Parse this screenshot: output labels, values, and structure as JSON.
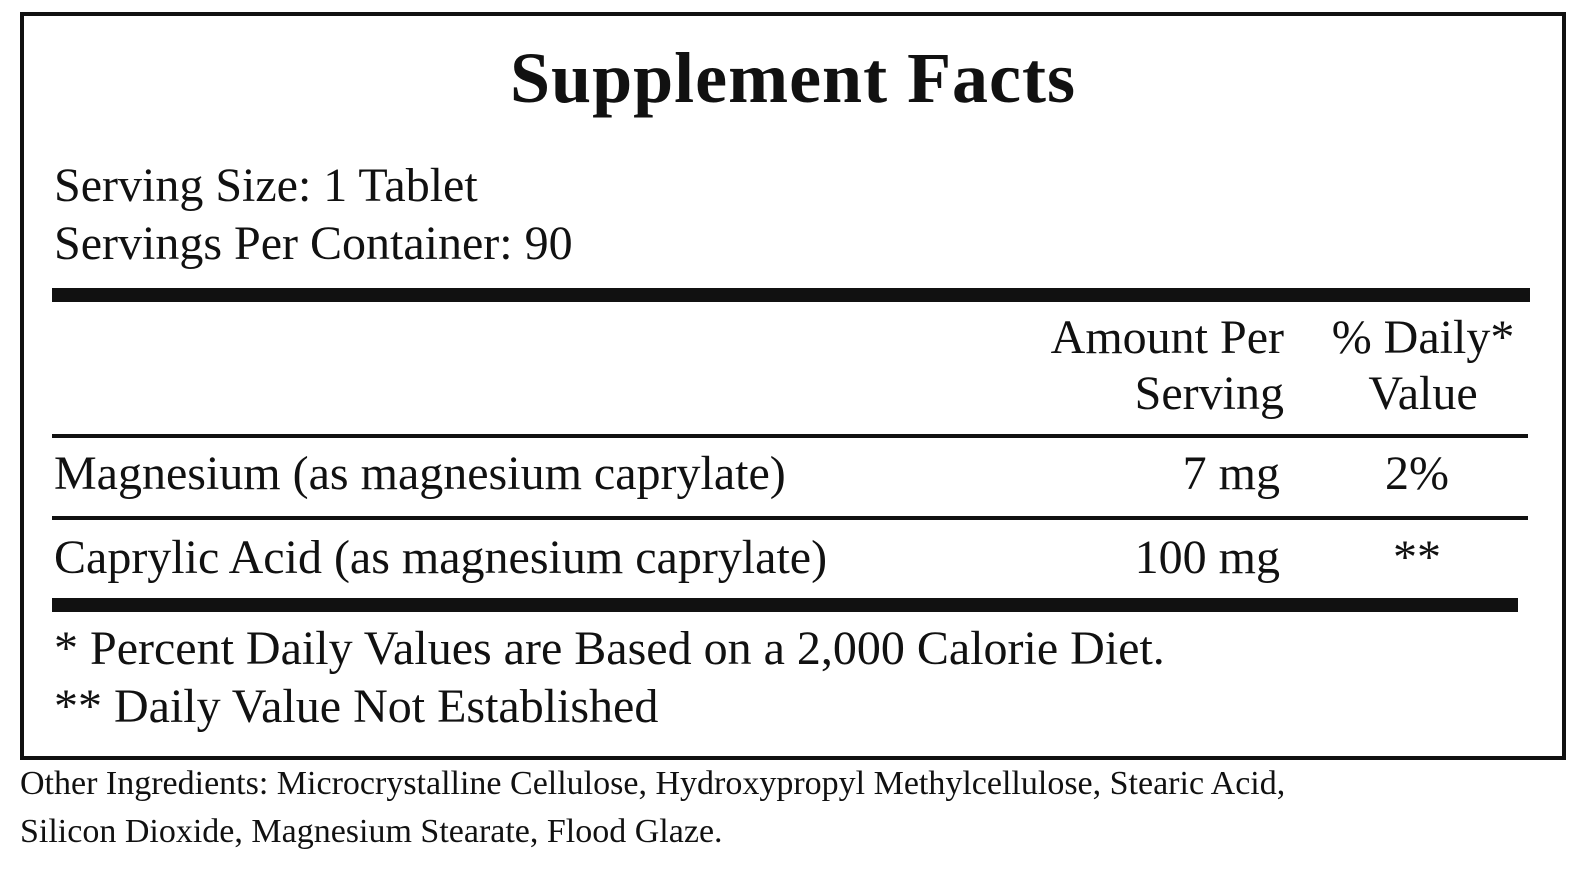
{
  "facts": {
    "title": "Supplement Facts",
    "serving_size": "Serving Size: 1 Tablet",
    "servings_per_container": "Servings Per Container: 90",
    "columns": {
      "amount_line1": "Amount Per",
      "amount_line2": "Serving",
      "dv_line1": "% Daily*",
      "dv_line2": "Value"
    },
    "nutrients": [
      {
        "name": "Magnesium (as magnesium caprylate)",
        "amount": "7 mg",
        "daily_value": "2%"
      },
      {
        "name": "Caprylic Acid (as magnesium caprylate)",
        "amount": "100 mg",
        "daily_value": "**"
      }
    ],
    "footnotes": [
      "* Percent Daily Values are Based on a 2,000 Calorie Diet.",
      "** Daily Value Not Established"
    ]
  },
  "other_ingredients": {
    "line1": "Other Ingredients: Microcrystalline Cellulose, Hydroxypropyl Methylcellulose, Stearic Acid,",
    "line2": "Silicon Dioxide, Magnesium Stearate, Flood Glaze."
  }
}
